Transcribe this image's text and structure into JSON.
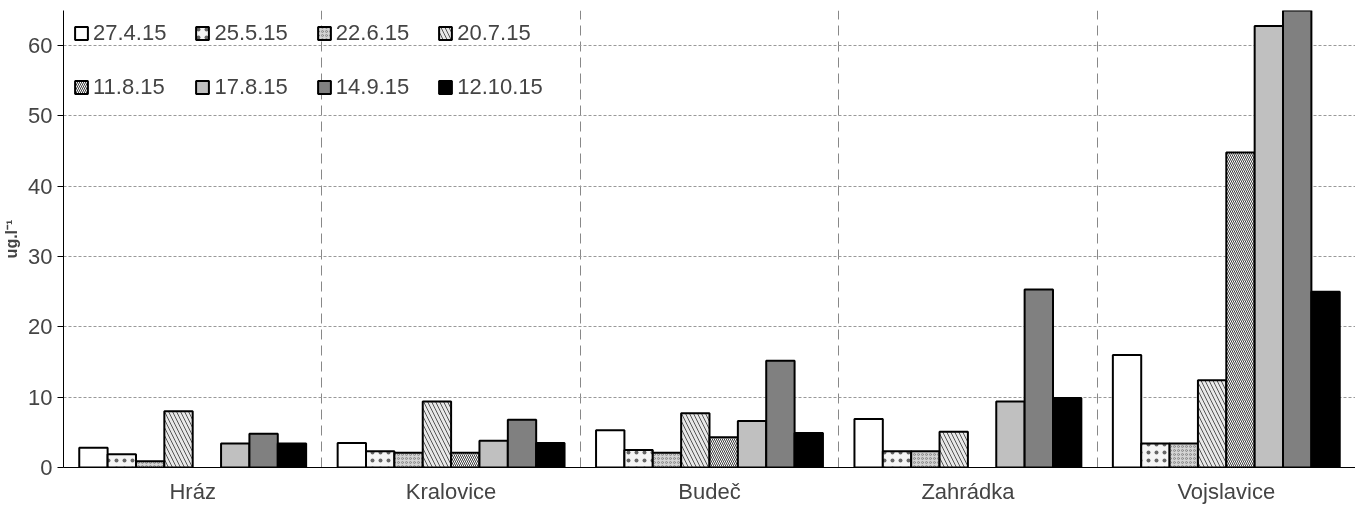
{
  "chart_data": {
    "type": "bar",
    "ylabel": "ug.l⁻¹",
    "categories": [
      "Hráz",
      "Kralovice",
      "Budeč",
      "Zahrádka",
      "Vojslavice"
    ],
    "series": [
      {
        "name": "27.4.15",
        "color": "#ffffff",
        "values": [
          2.8,
          3.5,
          5.3,
          6.9,
          16.0
        ]
      },
      {
        "name": "25.5.15",
        "color": "#f5f5f5",
        "values": [
          1.9,
          2.3,
          2.5,
          2.3,
          3.4
        ]
      },
      {
        "name": "22.6.15",
        "color": "#d4d4d4",
        "values": [
          0.9,
          2.1,
          2.1,
          2.3,
          3.4
        ]
      },
      {
        "name": "20.7.15",
        "color": "#e8e8e8",
        "values": [
          8.0,
          9.4,
          7.7,
          5.1,
          12.4
        ]
      },
      {
        "name": "11.8.15",
        "color": "#404040",
        "values": [
          null,
          2.1,
          4.3,
          null,
          44.8
        ]
      },
      {
        "name": "17.8.15",
        "color": "#c0c0c0",
        "values": [
          3.4,
          3.8,
          6.6,
          9.4,
          62.8
        ]
      },
      {
        "name": "14.9.15",
        "color": "#808080",
        "values": [
          4.8,
          6.8,
          15.2,
          25.3,
          65
        ]
      },
      {
        "name": "12.10.15",
        "color": "#000000",
        "values": [
          3.4,
          3.5,
          4.9,
          9.9,
          25.0
        ]
      }
    ],
    "ylim": [
      0,
      65
    ],
    "yticks": [
      0,
      10,
      20,
      30,
      40,
      50,
      60
    ],
    "grid": true,
    "legend": "top left"
  }
}
